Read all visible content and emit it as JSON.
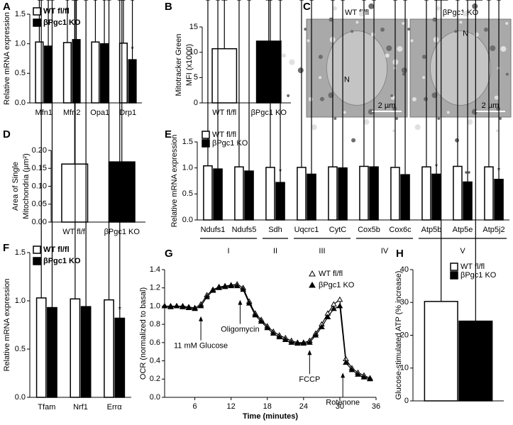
{
  "chart_data": [
    {
      "type": "bar",
      "panel": "A",
      "ylabel": "Relative mRNA expression",
      "categories": [
        "Mfn1",
        "Mfn2",
        "Opa1",
        "Drp1"
      ],
      "series": [
        {
          "name": "WT fl/fl",
          "color": "#ffffff",
          "values": [
            1.03,
            1.02,
            1.03,
            1.01
          ],
          "errors": [
            0.06,
            0.05,
            0.06,
            0.04
          ],
          "labels": [
            null,
            null,
            null,
            null
          ]
        },
        {
          "name": "βPgc1 KO",
          "color": "#000000",
          "values": [
            0.96,
            1.07,
            1.0,
            0.73
          ],
          "errors": [
            0.05,
            0.05,
            0.04,
            0.08
          ],
          "labels": [
            null,
            null,
            null,
            "*"
          ]
        }
      ],
      "ylim": [
        0,
        1.5
      ],
      "yticks": [
        {
          "value": 0,
          "label": "0.0"
        },
        0.5,
        {
          "value": 1,
          "label": "1.0"
        },
        1.5
      ],
      "legend": "upper left"
    },
    {
      "type": "bar",
      "panel": "B",
      "ylabel": [
        "Mitotracker Green",
        "MFI (x1000)"
      ],
      "categories": [
        "WT fl/fl",
        "βPgc1 KO"
      ],
      "values": [
        10.7,
        12.2
      ],
      "errors": [
        0.5,
        0.5
      ],
      "colors": [
        "#ffffff",
        "#000000"
      ],
      "ylim": [
        0,
        15
      ],
      "yticks": [
        0,
        5,
        10,
        15
      ]
    },
    {
      "type": "image",
      "panel": "C",
      "images": [
        {
          "label": "WT fl/fl",
          "nucleus": "N",
          "scale": "2 µm"
        },
        {
          "label": "βPgc1 KO",
          "nucleus": "N",
          "scale": "2 µm"
        }
      ]
    },
    {
      "type": "bar",
      "panel": "D",
      "ylabel": [
        "Area of Single",
        "Mitochondria (µm²)"
      ],
      "categories": [
        "WT fl/fl",
        "βPgc1 KO"
      ],
      "values": [
        0.162,
        0.168
      ],
      "errors": [
        0.004,
        0.004
      ],
      "colors": [
        "#ffffff",
        "#000000"
      ],
      "ylim": [
        0,
        0.2
      ],
      "yticks": [
        {
          "value": 0,
          "label": "0.00"
        },
        0.05,
        {
          "value": 0.1,
          "label": "0.10"
        },
        0.15,
        {
          "value": 0.2,
          "label": "0.20"
        }
      ]
    },
    {
      "type": "bar",
      "panel": "E",
      "ylabel": "Relative mRNA expression",
      "categories": [
        "Ndufs1",
        "Ndufs5",
        "Sdh",
        "Uqcrc1",
        "CytC",
        "Cox5b",
        "Cox6c",
        "Atp5b",
        "Atp5e",
        "Atp5j2"
      ],
      "series": [
        {
          "name": "WT fl/fl",
          "color": "#ffffff",
          "values": [
            1.04,
            1.02,
            1.01,
            1.01,
            1.02,
            1.03,
            1.01,
            1.02,
            1.03,
            1.02
          ],
          "errors": [
            0.07,
            0.05,
            0.03,
            0.04,
            0.05,
            0.04,
            0.04,
            0.06,
            0.05,
            0.04
          ],
          "labels": [
            null,
            null,
            null,
            null,
            null,
            null,
            null,
            null,
            null,
            null
          ]
        },
        {
          "name": "βPgc1 KO",
          "color": "#000000",
          "values": [
            0.98,
            0.94,
            0.72,
            0.88,
            1.0,
            1.02,
            0.87,
            0.88,
            0.73,
            0.78
          ],
          "errors": [
            0.04,
            0.03,
            0.1,
            0.12,
            0.04,
            0.04,
            0.06,
            0.03,
            0.04,
            0.06
          ],
          "labels": [
            null,
            null,
            "*",
            null,
            null,
            null,
            null,
            "*",
            "**",
            "*"
          ]
        }
      ],
      "groups": [
        {
          "label": "I",
          "categories": [
            "Ndufs1",
            "Ndufs5"
          ]
        },
        {
          "label": "II",
          "categories": [
            "Sdh"
          ]
        },
        {
          "label": "III",
          "categories": [
            "Uqcrc1",
            "CytC"
          ]
        },
        {
          "label": "IV",
          "categories": [
            "Cox5b",
            "Cox6c"
          ]
        },
        {
          "label": "V",
          "categories": [
            "Atp5b",
            "Atp5e",
            "Atp5j2"
          ]
        }
      ],
      "ylim": [
        0,
        1.5
      ],
      "yticks": [
        {
          "value": 0,
          "label": "0.0"
        },
        0.5,
        {
          "value": 1,
          "label": "1.0"
        },
        1.5
      ],
      "legend": "upper left"
    },
    {
      "type": "bar",
      "panel": "F",
      "ylabel": "Relative mRNA expression",
      "categories": [
        "Tfam",
        "Nrf1",
        "Errα"
      ],
      "series": [
        {
          "name": "WT fl/fl",
          "color": "#ffffff",
          "values": [
            1.03,
            1.02,
            1.01
          ],
          "errors": [
            0.06,
            0.06,
            0.04
          ],
          "labels": [
            null,
            null,
            null
          ]
        },
        {
          "name": "βPgc1 KO",
          "color": "#000000",
          "values": [
            0.93,
            0.94,
            0.82
          ],
          "errors": [
            0.05,
            0.04,
            0.03
          ],
          "labels": [
            null,
            null,
            "*"
          ]
        }
      ],
      "ylim": [
        0,
        1.5
      ],
      "yticks": [
        {
          "value": 0,
          "label": "0.0"
        },
        0.5,
        {
          "value": 1,
          "label": "1.0"
        },
        1.5
      ],
      "legend": "upper left"
    },
    {
      "type": "line",
      "panel": "G",
      "xlabel": "Time (minutes)",
      "ylabel": "OCR (normalized to basal)",
      "x": [
        1,
        2,
        3,
        4,
        5,
        6,
        7,
        8,
        9,
        10,
        11,
        12,
        13,
        14,
        15,
        16,
        17,
        18,
        19,
        20,
        21,
        22,
        23,
        24,
        25,
        26,
        27,
        28,
        29,
        30,
        31,
        32,
        33,
        34,
        35
      ],
      "series": [
        {
          "name": "WT fl/fl",
          "color": "#000000",
          "marker": "open-triangle",
          "values": [
            1.0,
            1.0,
            1.0,
            1.0,
            0.99,
            0.98,
            1.02,
            1.12,
            1.18,
            1.21,
            1.22,
            1.23,
            1.24,
            1.2,
            1.05,
            0.92,
            0.85,
            0.78,
            0.72,
            0.68,
            0.65,
            0.62,
            0.6,
            0.6,
            0.62,
            0.7,
            0.8,
            0.92,
            1.02,
            1.07,
            0.42,
            0.32,
            0.27,
            0.24,
            0.21
          ]
        },
        {
          "name": "βPgc1 KO",
          "color": "#000000",
          "marker": "filled-triangle",
          "values": [
            1.0,
            0.99,
            1.0,
            0.99,
            0.98,
            0.97,
            1.0,
            1.1,
            1.17,
            1.2,
            1.21,
            1.22,
            1.22,
            1.18,
            1.03,
            0.9,
            0.83,
            0.76,
            0.7,
            0.66,
            0.63,
            0.6,
            0.59,
            0.59,
            0.6,
            0.68,
            0.77,
            0.88,
            0.97,
            1.0,
            0.38,
            0.3,
            0.25,
            0.22,
            0.2
          ]
        }
      ],
      "annotations": [
        {
          "text": "11 mM Glucose",
          "x": 7,
          "y": 0.92
        },
        {
          "text": "Oligomycin",
          "x": 13.5,
          "y": 1.1
        },
        {
          "text": "FCCP",
          "x": 25,
          "y": 0.55
        },
        {
          "text": "Rotenone",
          "x": 30.5,
          "y": 0.3
        }
      ],
      "xlim": [
        1,
        36
      ],
      "xticks": [
        6,
        12,
        18,
        24,
        30,
        36
      ],
      "ylim": [
        0,
        1.4
      ],
      "yticks": [
        {
          "value": 0,
          "label": "0.0"
        },
        0.2,
        0.4,
        0.6,
        0.8,
        {
          "value": 1,
          "label": "1.0"
        },
        1.2,
        1.4
      ],
      "legend": "upper right"
    },
    {
      "type": "bar",
      "panel": "H",
      "ylabel": "Glucose-stimulated ATP (% increase)",
      "series": [
        {
          "name": "WT fl/fl",
          "color": "#ffffff",
          "values": [
            30.3
          ],
          "errors": [
            3.5
          ],
          "labels": [
            null
          ]
        },
        {
          "name": "βPgc1 KO",
          "color": "#000000",
          "values": [
            24.3
          ],
          "errors": [
            5.5
          ],
          "labels": [
            null
          ]
        }
      ],
      "ylim": [
        0,
        40
      ],
      "yticks": [
        0,
        10,
        20,
        30,
        40
      ],
      "legend": "upper right"
    }
  ]
}
